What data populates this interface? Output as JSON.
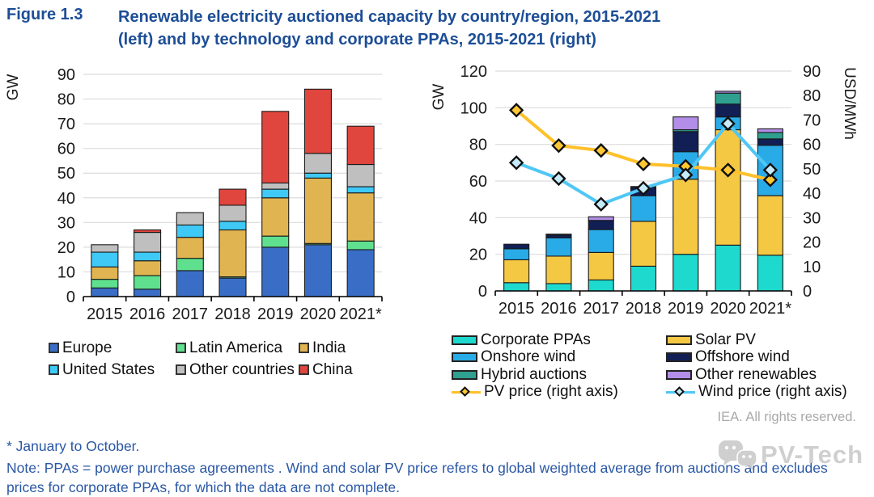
{
  "figure": {
    "label": "Figure 1.3",
    "title_line1": "Renewable electricity auctioned capacity by country/region, 2015-2021",
    "title_line2": "(left) and by technology and corporate PPAs, 2015-2021 (right)"
  },
  "credit": "IEA. All rights reserved.",
  "watermark_text": "PV-Tech",
  "footnotes": {
    "asterisk": "* January to October.",
    "note": "Note: PPAs = power purchase agreements . Wind and solar PV price refers to global weighted average from auctions and excludes prices for corporate PPAs, for which the data are not complete."
  },
  "colors": {
    "title_blue": "#1d4e96",
    "note_blue": "#2a57a5",
    "credit_gray": "#a9a9a9",
    "gridline": "#dcdcdc",
    "axis": "#1a1a1a"
  },
  "chart_data": [
    {
      "type": "bar",
      "stacked": true,
      "position": "left",
      "ylabel_left": "GW",
      "ylim_left": [
        0,
        90
      ],
      "ytick_step": 10,
      "grid": true,
      "categories": [
        "2015",
        "2016",
        "2017",
        "2018",
        "2019",
        "2020",
        "2021*"
      ],
      "series": [
        {
          "name": "Europe",
          "color": "#3a6ec6",
          "values": [
            3.5,
            3,
            10.5,
            7.5,
            20,
            21,
            19
          ]
        },
        {
          "name": "Latin America",
          "color": "#5fe08e",
          "values": [
            3.5,
            5.5,
            5,
            0.5,
            4.5,
            0.5,
            3.5
          ]
        },
        {
          "name": "India",
          "color": "#e0b451",
          "values": [
            5,
            6,
            8.5,
            19,
            15.5,
            26.5,
            19.5
          ]
        },
        {
          "name": "United States",
          "color": "#3ec9f6",
          "values": [
            6,
            3.5,
            5,
            3.5,
            3.5,
            2,
            2.5
          ]
        },
        {
          "name": "Other countries",
          "color": "#bfbfbf",
          "values": [
            3,
            8,
            5,
            6.5,
            2.5,
            8,
            9
          ]
        },
        {
          "name": "China",
          "color": "#e0453e",
          "values": [
            0,
            1,
            0,
            6.5,
            29,
            26,
            15.5
          ]
        }
      ]
    },
    {
      "type": "bar+line",
      "stacked": true,
      "position": "right",
      "ylabel_left": "GW",
      "ylabel_right": "USD/MWh",
      "ylim_left": [
        0,
        120
      ],
      "ytick_step": 20,
      "ylim_right": [
        0,
        90
      ],
      "ytick_step_right": 10,
      "grid": true,
      "categories": [
        "2015",
        "2016",
        "2017",
        "2018",
        "2019",
        "2020",
        "2021*"
      ],
      "series": [
        {
          "name": "Corporate PPAs",
          "color": "#1ed9ce",
          "values": [
            4.5,
            4,
            6,
            13.5,
            20,
            25,
            19.5
          ]
        },
        {
          "name": "Solar PV",
          "color": "#f5c843",
          "values": [
            12.5,
            15,
            15,
            24.5,
            41,
            63,
            32.5
          ]
        },
        {
          "name": "Onshore wind",
          "color": "#29abe8",
          "values": [
            6,
            10,
            12.5,
            14,
            15,
            7,
            27.5
          ]
        },
        {
          "name": "Offshore wind",
          "color": "#111f55",
          "values": [
            2.5,
            1.5,
            5,
            4.5,
            11,
            7,
            3.5
          ]
        },
        {
          "name": "Hybrid auctions",
          "color": "#2fa08f",
          "values": [
            0,
            0.5,
            0,
            0.5,
            1,
            6,
            3.5
          ]
        },
        {
          "name": "Other renewables",
          "color": "#b28ee8",
          "values": [
            0,
            0,
            2,
            0,
            7,
            1,
            2
          ]
        }
      ],
      "lines": [
        {
          "name": "PV price (right axis)",
          "color": "#ffc02a",
          "marker_fill": "#ffc832",
          "values": [
            74,
            59.5,
            57.5,
            52,
            51,
            49.5,
            45.5
          ]
        },
        {
          "name": "Wind price (right axis)",
          "color": "#4fc7f5",
          "marker_fill": "#c6ecfb",
          "values": [
            52.5,
            46,
            35.5,
            42,
            47.5,
            68.5,
            49.5
          ]
        }
      ]
    }
  ]
}
